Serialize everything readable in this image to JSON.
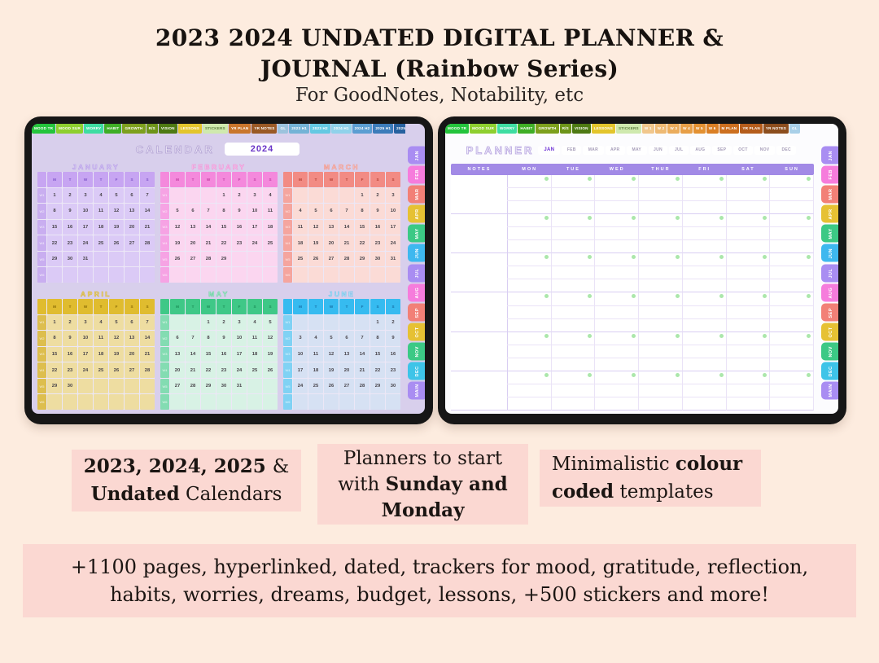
{
  "page": {
    "title_line1": "2023 2024 UNDATED DIGITAL PLANNER &",
    "title_line2": "JOURNAL (Rainbow Series)",
    "subtitle": "For GoodNotes, Notability, etc",
    "background_color": "#fdecdf",
    "box_color": "#fbd8d2"
  },
  "left_tablet": {
    "header": {
      "title": "CALENDAR",
      "year": "2024"
    },
    "top_tabs": [
      {
        "label": "MOOD TR",
        "color": "#24c43c"
      },
      {
        "label": "MOOD SUR",
        "color": "#8ecf2f"
      },
      {
        "label": "WORRY",
        "color": "#3edda2"
      },
      {
        "label": "HABIT",
        "color": "#3fae26"
      },
      {
        "label": "GROWTH",
        "color": "#7da01d"
      },
      {
        "label": "R/S",
        "color": "#6d9419"
      },
      {
        "label": "VISION",
        "color": "#4e7a13"
      },
      {
        "label": "LESSONS",
        "color": "#e3c52c"
      },
      {
        "label": "STICKERS",
        "color": "#cfe9ae",
        "text": "#5f8040"
      },
      {
        "label": "YR PLAN",
        "color": "#c9762c"
      },
      {
        "label": "YR NOTES",
        "color": "#9a5a26"
      },
      {
        "label": "GL",
        "color": "#9cc3dd"
      },
      {
        "label": "2023 H1",
        "color": "#74b3d6"
      },
      {
        "label": "2023 H2",
        "color": "#64c9e2"
      },
      {
        "label": "2024 H1",
        "color": "#90d2ea"
      },
      {
        "label": "2024 H2",
        "color": "#5b9ed2"
      },
      {
        "label": "2025 H1",
        "color": "#3c7cba"
      },
      {
        "label": "2025 H2",
        "color": "#27619f"
      }
    ],
    "side_tabs": [
      {
        "label": "JAN",
        "color": "#a98df2"
      },
      {
        "label": "FEB",
        "color": "#f67cdc"
      },
      {
        "label": "MAR",
        "color": "#f28077"
      },
      {
        "label": "APR",
        "color": "#e6c133"
      },
      {
        "label": "MAY",
        "color": "#3cc985"
      },
      {
        "label": "JUN",
        "color": "#3eb8ef"
      },
      {
        "label": "JUL",
        "color": "#a98df2"
      },
      {
        "label": "AUG",
        "color": "#f67cdc"
      },
      {
        "label": "SEP",
        "color": "#f28077"
      },
      {
        "label": "OCT",
        "color": "#e6c133"
      },
      {
        "label": "NOV",
        "color": "#3cc985"
      },
      {
        "label": "DEC",
        "color": "#3ec4e8"
      },
      {
        "label": "MAIN",
        "color": "#a98df2"
      }
    ],
    "months": [
      {
        "name": "JANUARY",
        "palette": "purple",
        "dow": [
          "M",
          "T",
          "W",
          "T",
          "F",
          "S",
          "S"
        ],
        "weeks": [
          [
            "1",
            "2",
            "3",
            "4",
            "5",
            "6",
            "7"
          ],
          [
            "8",
            "9",
            "10",
            "11",
            "12",
            "13",
            "14"
          ],
          [
            "15",
            "16",
            "17",
            "18",
            "19",
            "20",
            "21"
          ],
          [
            "22",
            "23",
            "24",
            "25",
            "26",
            "27",
            "28"
          ],
          [
            "29",
            "30",
            "31",
            "",
            "",
            "",
            ""
          ],
          [
            "",
            "",
            "",
            "",
            "",
            "",
            ""
          ]
        ]
      },
      {
        "name": "FEBRUARY",
        "palette": "pink",
        "dow": [
          "M",
          "T",
          "W",
          "T",
          "F",
          "S",
          "S"
        ],
        "weeks": [
          [
            "",
            "",
            "",
            "1",
            "2",
            "3",
            "4"
          ],
          [
            "5",
            "6",
            "7",
            "8",
            "9",
            "10",
            "11"
          ],
          [
            "12",
            "13",
            "14",
            "15",
            "16",
            "17",
            "18"
          ],
          [
            "19",
            "20",
            "21",
            "22",
            "23",
            "24",
            "25"
          ],
          [
            "26",
            "27",
            "28",
            "29",
            "",
            "",
            ""
          ],
          [
            "",
            "",
            "",
            "",
            "",
            "",
            ""
          ]
        ]
      },
      {
        "name": "MARCH",
        "palette": "salmon",
        "dow": [
          "M",
          "T",
          "W",
          "T",
          "F",
          "S",
          "S"
        ],
        "weeks": [
          [
            "",
            "",
            "",
            "",
            "1",
            "2",
            "3"
          ],
          [
            "4",
            "5",
            "6",
            "7",
            "8",
            "9",
            "10"
          ],
          [
            "11",
            "12",
            "13",
            "14",
            "15",
            "16",
            "17"
          ],
          [
            "18",
            "19",
            "20",
            "21",
            "22",
            "23",
            "24"
          ],
          [
            "25",
            "26",
            "27",
            "28",
            "29",
            "30",
            "31"
          ],
          [
            "",
            "",
            "",
            "",
            "",
            "",
            ""
          ]
        ]
      },
      {
        "name": "APRIL",
        "palette": "gold",
        "dow": [
          "M",
          "T",
          "W",
          "T",
          "F",
          "S",
          "S"
        ],
        "weeks": [
          [
            "1",
            "2",
            "3",
            "4",
            "5",
            "6",
            "7"
          ],
          [
            "8",
            "9",
            "10",
            "11",
            "12",
            "13",
            "14"
          ],
          [
            "15",
            "16",
            "17",
            "18",
            "19",
            "20",
            "21"
          ],
          [
            "22",
            "23",
            "24",
            "25",
            "26",
            "27",
            "28"
          ],
          [
            "29",
            "30",
            "",
            "",
            "",
            "",
            ""
          ],
          [
            "",
            "",
            "",
            "",
            "",
            "",
            ""
          ]
        ]
      },
      {
        "name": "MAY",
        "palette": "green",
        "dow": [
          "M",
          "T",
          "W",
          "T",
          "F",
          "S",
          "S"
        ],
        "weeks": [
          [
            "",
            "",
            "1",
            "2",
            "3",
            "4",
            "5"
          ],
          [
            "6",
            "7",
            "8",
            "9",
            "10",
            "11",
            "12"
          ],
          [
            "13",
            "14",
            "15",
            "16",
            "17",
            "18",
            "19"
          ],
          [
            "20",
            "21",
            "22",
            "23",
            "24",
            "25",
            "26"
          ],
          [
            "27",
            "28",
            "29",
            "30",
            "31",
            "",
            ""
          ],
          [
            "",
            "",
            "",
            "",
            "",
            "",
            ""
          ]
        ]
      },
      {
        "name": "JUNE",
        "palette": "blue",
        "dow": [
          "M",
          "T",
          "W",
          "T",
          "F",
          "S",
          "S"
        ],
        "weeks": [
          [
            "",
            "",
            "",
            "",
            "",
            "1",
            "2"
          ],
          [
            "3",
            "4",
            "5",
            "6",
            "7",
            "8",
            "9"
          ],
          [
            "10",
            "11",
            "12",
            "13",
            "14",
            "15",
            "16"
          ],
          [
            "17",
            "18",
            "19",
            "20",
            "21",
            "22",
            "23"
          ],
          [
            "24",
            "25",
            "26",
            "27",
            "28",
            "29",
            "30"
          ],
          [
            "",
            "",
            "",
            "",
            "",
            "",
            ""
          ]
        ]
      }
    ]
  },
  "palettes": {
    "purple": {
      "head": "#c7a5f2",
      "week": "#c9aef0",
      "cell": "#dbcaf6",
      "dow": "#7d54c8",
      "title_fill": "#ded0f5",
      "title_stroke": "#b79fe8"
    },
    "pink": {
      "head": "#f489dc",
      "week": "#f6a3e4",
      "cell": "#fbd6f0",
      "dow": "#c23da2",
      "title_fill": "#f9cdec",
      "title_stroke": "#ef93d8"
    },
    "salmon": {
      "head": "#f28b84",
      "week": "#f5a59e",
      "cell": "#fbdbd6",
      "dow": "#b33d32",
      "title_fill": "#f9cfc9",
      "title_stroke": "#ee978f"
    },
    "gold": {
      "head": "#e0bc2f",
      "week": "#ddbe4e",
      "cell": "#eedda1",
      "dow": "#8a6c08",
      "title_fill": "#ecd88f",
      "title_stroke": "#d4b23a"
    },
    "green": {
      "head": "#3fc887",
      "week": "#83dcb2",
      "cell": "#d8f2e5",
      "dow": "#1d8f58",
      "title_fill": "#c5eeda",
      "title_stroke": "#6fd2a4"
    },
    "blue": {
      "head": "#36bbf0",
      "week": "#80d2f4",
      "cell": "#d6e1f3",
      "dow": "#176fa6",
      "title_fill": "#c8e6f6",
      "title_stroke": "#72c6ec"
    }
  },
  "right_tablet": {
    "header": {
      "title": "PLANNER",
      "months": [
        "JAN",
        "FEB",
        "MAR",
        "APR",
        "MAY",
        "JUN",
        "JUL",
        "AUG",
        "SEP",
        "OCT",
        "NOV",
        "DEC"
      ],
      "active_month": "JAN"
    },
    "top_tabs": [
      {
        "label": "MOOD TR",
        "color": "#24c43c"
      },
      {
        "label": "MOOD SUR",
        "color": "#8ecf2f"
      },
      {
        "label": "WORRY",
        "color": "#3edda2"
      },
      {
        "label": "HABIT",
        "color": "#3fae26"
      },
      {
        "label": "GROWTH",
        "color": "#7da01d"
      },
      {
        "label": "R/S",
        "color": "#6d9419"
      },
      {
        "label": "VISION",
        "color": "#4e7a13"
      },
      {
        "label": "LESSONS",
        "color": "#e3c52c"
      },
      {
        "label": "STICKERS",
        "color": "#cfe9ae",
        "text": "#5f8040"
      },
      {
        "label": "W 1",
        "color": "#f1c78c"
      },
      {
        "label": "W 2",
        "color": "#eeba74"
      },
      {
        "label": "W 3",
        "color": "#ebad5d"
      },
      {
        "label": "W 4",
        "color": "#e79f47"
      },
      {
        "label": "W 5",
        "color": "#e39132"
      },
      {
        "label": "W 6",
        "color": "#da7f25"
      },
      {
        "label": "M PLAN",
        "color": "#cc6f1f"
      },
      {
        "label": "YR PLAN",
        "color": "#b55d1c"
      },
      {
        "label": "YR NOTES",
        "color": "#8c4e1e"
      },
      {
        "label": "GL",
        "color": "#a9d0e8"
      }
    ],
    "side_tabs": [
      {
        "label": "JAN",
        "color": "#a98df2"
      },
      {
        "label": "FEB",
        "color": "#f67cdc"
      },
      {
        "label": "MAR",
        "color": "#f28077"
      },
      {
        "label": "APR",
        "color": "#e6c133"
      },
      {
        "label": "MAY",
        "color": "#3cc985"
      },
      {
        "label": "JUN",
        "color": "#3eb8ef"
      },
      {
        "label": "JUL",
        "color": "#a98df2"
      },
      {
        "label": "AUG",
        "color": "#f67cdc"
      },
      {
        "label": "SEP",
        "color": "#f28077"
      },
      {
        "label": "OCT",
        "color": "#e6c133"
      },
      {
        "label": "NOV",
        "color": "#3cc985"
      },
      {
        "label": "DEC",
        "color": "#3ec4e8"
      },
      {
        "label": "MAIN",
        "color": "#a98df2"
      }
    ],
    "grid": {
      "columns": [
        "NOTES",
        "MON",
        "TUE",
        "WED",
        "THUR",
        "FRI",
        "SAT",
        "SUN"
      ],
      "week_blocks": 6,
      "rows_per_block": 3,
      "header_color": "#a28ae6",
      "dot_color": "#abe7ab"
    }
  },
  "features": [
    {
      "lines": [
        [
          {
            "t": "2023, 2024, 2025 ",
            "b": true
          },
          {
            "t": "&",
            "b": false
          }
        ],
        [
          {
            "t": "Undated",
            "b": true
          },
          {
            "t": " Calendars",
            "b": false
          }
        ]
      ]
    },
    {
      "lines": [
        [
          {
            "t": "Planners to start",
            "b": false
          }
        ],
        [
          {
            "t": "with ",
            "b": false
          },
          {
            "t": "Sunday and",
            "b": true
          }
        ],
        [
          {
            "t": "Monday",
            "b": true
          }
        ]
      ]
    },
    {
      "lines": [
        [
          {
            "t": "Minimalistic ",
            "b": false
          },
          {
            "t": "colour",
            "b": true
          }
        ],
        [
          {
            "t": "coded",
            "b": true
          },
          {
            "t": " templates",
            "b": false
          }
        ]
      ]
    }
  ],
  "banner": {
    "lines": [
      "+1100 pages, hyperlinked, dated, trackers for mood, gratitude, reflection,",
      "habits, worries, dreams, budget, lessons, +500 stickers and more!"
    ]
  }
}
